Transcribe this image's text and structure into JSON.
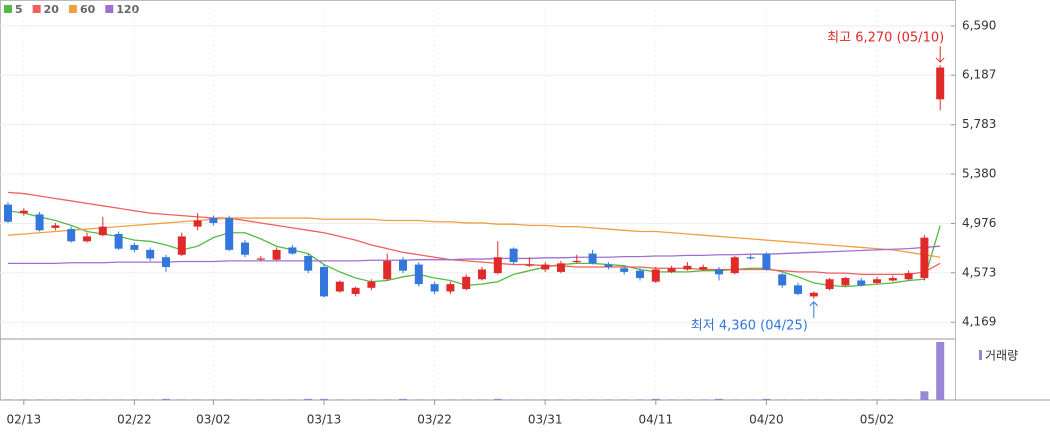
{
  "chart_data": {
    "type": "candlestick",
    "categories": [
      null,
      "02/13",
      null,
      null,
      null,
      null,
      null,
      null,
      "02/22",
      null,
      null,
      null,
      null,
      "03/02",
      null,
      null,
      null,
      null,
      null,
      null,
      "03/13",
      null,
      null,
      null,
      null,
      null,
      null,
      "03/22",
      null,
      null,
      null,
      null,
      null,
      null,
      "03/31",
      null,
      null,
      null,
      null,
      null,
      null,
      "04/11",
      null,
      null,
      null,
      null,
      null,
      null,
      "04/20",
      null,
      null,
      null,
      null,
      null,
      null,
      "05/02",
      null,
      null,
      null,
      null
    ],
    "open": [
      5130,
      5060,
      5050,
      4940,
      4930,
      4830,
      4880,
      4890,
      4800,
      4760,
      4700,
      4720,
      4950,
      5020,
      5020,
      4820,
      4680,
      4680,
      4780,
      4710,
      4620,
      4420,
      4400,
      4450,
      4520,
      4680,
      4640,
      4480,
      4420,
      4440,
      4520,
      4570,
      4770,
      4630,
      4600,
      4580,
      4660,
      4730,
      4640,
      4610,
      4590,
      4500,
      4580,
      4600,
      4600,
      4600,
      4570,
      4700,
      4730,
      4560,
      4470,
      4380,
      4440,
      4470,
      4510,
      4490,
      4510,
      4520,
      4530,
      5990
    ],
    "high": [
      5150,
      5100,
      5070,
      4980,
      4950,
      4900,
      5030,
      4910,
      4820,
      4780,
      4720,
      4900,
      5060,
      5040,
      5040,
      4840,
      4710,
      4780,
      4800,
      4730,
      4640,
      4510,
      4460,
      4520,
      4730,
      4700,
      4660,
      4500,
      4500,
      4560,
      4620,
      4830,
      4780,
      4700,
      4660,
      4670,
      4720,
      4760,
      4660,
      4630,
      4610,
      4620,
      4630,
      4660,
      4640,
      4620,
      4710,
      4720,
      4740,
      4570,
      4490,
      4420,
      4530,
      4540,
      4530,
      4540,
      4550,
      4590,
      4880,
      6270
    ],
    "low": [
      4980,
      5040,
      4910,
      4920,
      4820,
      4820,
      4870,
      4760,
      4740,
      4670,
      4580,
      4710,
      4920,
      4960,
      4750,
      4700,
      4670,
      4670,
      4720,
      4570,
      4370,
      4410,
      4380,
      4430,
      4510,
      4570,
      4460,
      4400,
      4400,
      4430,
      4510,
      4560,
      4640,
      4620,
      4580,
      4570,
      4650,
      4640,
      4600,
      4560,
      4510,
      4490,
      4570,
      4590,
      4590,
      4510,
      4560,
      4680,
      4590,
      4450,
      4390,
      4360,
      4430,
      4460,
      4460,
      4480,
      4500,
      4510,
      4510,
      5900
    ],
    "close": [
      4990,
      5080,
      4920,
      4960,
      4830,
      4870,
      4950,
      4770,
      4760,
      4690,
      4620,
      4870,
      5000,
      4980,
      4760,
      4720,
      4690,
      4760,
      4730,
      4590,
      4380,
      4500,
      4450,
      4500,
      4670,
      4590,
      4480,
      4420,
      4480,
      4540,
      4600,
      4700,
      4660,
      4640,
      4640,
      4650,
      4670,
      4650,
      4620,
      4580,
      4530,
      4600,
      4610,
      4630,
      4620,
      4560,
      4700,
      4690,
      4600,
      4470,
      4400,
      4410,
      4520,
      4530,
      4470,
      4520,
      4530,
      4570,
      4860,
      6250
    ],
    "up_color": "#e02a2a",
    "down_color": "#3377dd",
    "series": [
      {
        "name": "5",
        "color": "#55bb44",
        "values": [
          5080,
          5060,
          5030,
          5000,
          4960,
          4910,
          4890,
          4870,
          4840,
          4830,
          4800,
          4760,
          4790,
          4860,
          4900,
          4900,
          4850,
          4790,
          4760,
          4730,
          4640,
          4580,
          4530,
          4500,
          4510,
          4540,
          4560,
          4530,
          4510,
          4470,
          4480,
          4500,
          4560,
          4590,
          4620,
          4640,
          4650,
          4650,
          4640,
          4630,
          4600,
          4580,
          4580,
          4580,
          4590,
          4590,
          4600,
          4610,
          4610,
          4580,
          4540,
          4490,
          4470,
          4460,
          4470,
          4480,
          4490,
          4510,
          4520,
          4960
        ]
      },
      {
        "name": "20",
        "color": "#f06060",
        "values": [
          5230,
          5220,
          5200,
          5180,
          5160,
          5140,
          5120,
          5100,
          5080,
          5060,
          5050,
          5040,
          5030,
          5020,
          5020,
          5000,
          4980,
          4960,
          4940,
          4920,
          4900,
          4870,
          4840,
          4800,
          4770,
          4740,
          4720,
          4700,
          4680,
          4670,
          4660,
          4650,
          4640,
          4640,
          4630,
          4630,
          4620,
          4620,
          4620,
          4620,
          4620,
          4610,
          4610,
          4610,
          4600,
          4600,
          4600,
          4600,
          4600,
          4590,
          4580,
          4580,
          4570,
          4570,
          4560,
          4560,
          4560,
          4560,
          4580,
          4650
        ]
      },
      {
        "name": "60",
        "color": "#f0a040",
        "values": [
          4880,
          4890,
          4900,
          4910,
          4920,
          4930,
          4940,
          4950,
          4960,
          4970,
          4980,
          4990,
          5000,
          5010,
          5020,
          5020,
          5020,
          5020,
          5020,
          5020,
          5010,
          5010,
          5010,
          5010,
          5000,
          5000,
          5000,
          4990,
          4990,
          4980,
          4980,
          4970,
          4970,
          4960,
          4960,
          4950,
          4950,
          4940,
          4930,
          4920,
          4910,
          4910,
          4900,
          4890,
          4880,
          4870,
          4860,
          4850,
          4840,
          4830,
          4820,
          4810,
          4800,
          4790,
          4780,
          4770,
          4760,
          4740,
          4720,
          4700
        ]
      },
      {
        "name": "120",
        "color": "#a070d0",
        "values": [
          4650,
          4650,
          4650,
          4650,
          4655,
          4655,
          4655,
          4660,
          4660,
          4660,
          4660,
          4665,
          4665,
          4665,
          4670,
          4670,
          4670,
          4670,
          4670,
          4670,
          4670,
          4670,
          4670,
          4675,
          4675,
          4675,
          4680,
          4680,
          4680,
          4685,
          4685,
          4690,
          4690,
          4690,
          4695,
          4695,
          4700,
          4700,
          4700,
          4705,
          4705,
          4710,
          4710,
          4715,
          4715,
          4720,
          4720,
          4725,
          4725,
          4730,
          4735,
          4740,
          4745,
          4750,
          4755,
          4760,
          4765,
          4770,
          4780,
          4790
        ]
      }
    ],
    "volume": {
      "name": "거래량",
      "color": "#9a86d6",
      "values": [
        1,
        1,
        1,
        1,
        1,
        1,
        1,
        1,
        1,
        1,
        2,
        1,
        1,
        1,
        1,
        1,
        1,
        1,
        1,
        2,
        2,
        1,
        1,
        1,
        1,
        2,
        1,
        1,
        1,
        1,
        1,
        2,
        1,
        1,
        1,
        1,
        1,
        1,
        1,
        1,
        1,
        2,
        1,
        1,
        1,
        2,
        1,
        1,
        2,
        1,
        1,
        1,
        1,
        1,
        1,
        1,
        1,
        1,
        15,
        100
      ]
    },
    "ylim": [
      4040,
      6720
    ],
    "yticks": [
      {
        "value": 6590,
        "label": "6,590"
      },
      {
        "value": 6187,
        "label": "6,187"
      },
      {
        "value": 5783,
        "label": "5,783"
      },
      {
        "value": 5380,
        "label": "5,380"
      },
      {
        "value": 4976,
        "label": "4,976"
      },
      {
        "value": 4573,
        "label": "4,573"
      },
      {
        "value": 4169,
        "label": "4,169"
      }
    ],
    "annotations": [
      {
        "text": "최고 6,270 (05/10)",
        "at": 59,
        "value": 6270,
        "color": "#e02a2a"
      },
      {
        "text": "최저 4,360 (04/25)",
        "at": 51,
        "value": 4360,
        "color": "#3377dd"
      }
    ],
    "grid": true
  }
}
